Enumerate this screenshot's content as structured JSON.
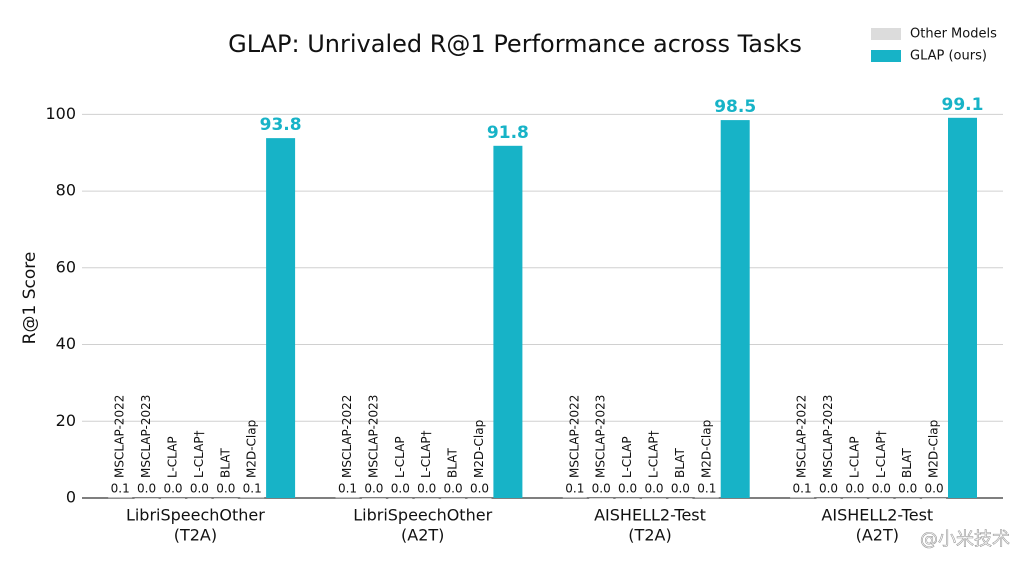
{
  "chart_data": {
    "type": "bar",
    "title": "GLAP: Unrivaled R@1 Performance across Tasks",
    "y_label": "R@1 Score",
    "categories": [
      [
        "LibriSpeechOther",
        "(T2A)"
      ],
      [
        "LibriSpeechOther",
        "(A2T)"
      ],
      [
        "AISHELL2-Test",
        "(T2A)"
      ],
      [
        "AISHELL2-Test",
        "(A2T)"
      ]
    ],
    "series": [
      {
        "name": "Other Models",
        "color": "#dcdcdc",
        "models": [
          "MSCLAP-2022",
          "MSCLAP-2023",
          "L-CLAP",
          "L-CLAP†",
          "BLAT",
          "M2D-Clap"
        ],
        "values": [
          [
            0.1,
            0,
            0,
            0,
            0,
            0.1
          ],
          [
            0.1,
            0,
            0,
            0,
            0,
            0
          ],
          [
            0.1,
            0,
            0,
            0,
            0,
            0.1
          ],
          [
            0.1,
            0,
            0,
            0,
            0,
            0
          ]
        ],
        "value_labels": [
          [
            "0.1",
            "0.0",
            "0.0",
            "0.0",
            "0.0",
            "0.1"
          ],
          [
            "0.1",
            "0.0",
            "0.0",
            "0.0",
            "0.0",
            "0.0"
          ],
          [
            "0.1",
            "0.0",
            "0.0",
            "0.0",
            "0.0",
            "0.1"
          ],
          [
            "0.1",
            "0.0",
            "0.0",
            "0.0",
            "0.0",
            "0.0"
          ]
        ]
      },
      {
        "name": "GLAP (ours)",
        "color": "#17b3c7",
        "values": [
          93.8,
          91.8,
          98.5,
          99.1
        ]
      }
    ],
    "ylim": [
      0,
      104
    ],
    "yticks": [
      0,
      20,
      40,
      60,
      80,
      100
    ],
    "grid": true,
    "legend": "upper right",
    "watermark": "@小米技术"
  }
}
